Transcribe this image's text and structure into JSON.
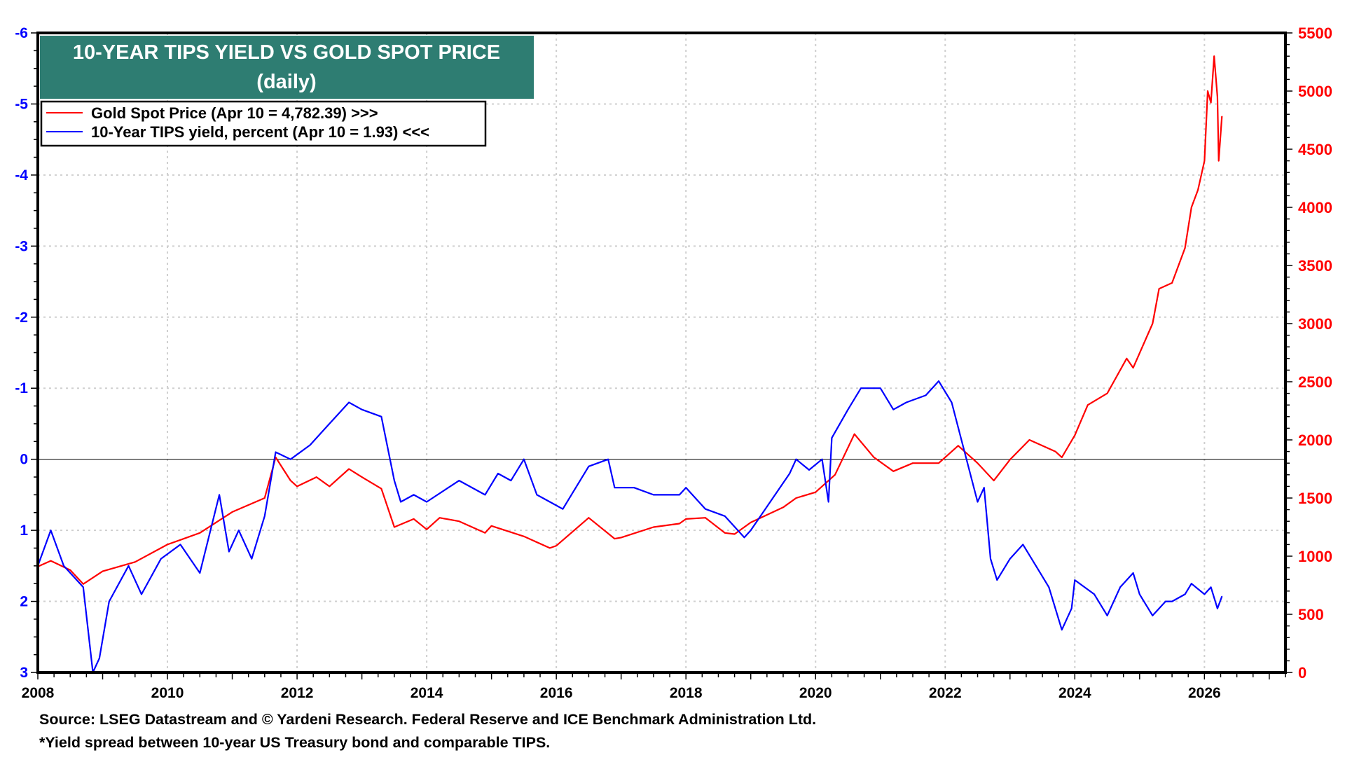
{
  "chart_data": {
    "type": "line",
    "title": "10-YEAR TIPS YIELD VS GOLD SPOT PRICE",
    "subtitle": "(daily)",
    "legend_placement": "top-left",
    "grid": true,
    "colors": {
      "gold": "#ff0000",
      "tips": "#0000ff",
      "title_bg": "#2e7d72"
    },
    "x_axis": {
      "range": [
        2008,
        2027.25
      ],
      "ticks": [
        "2008",
        "2010",
        "2012",
        "2014",
        "2016",
        "2018",
        "2020",
        "2022",
        "2024",
        "2026"
      ]
    },
    "left_axis": {
      "range": [
        3,
        -6
      ],
      "inverted": true,
      "ticks": [
        "-6",
        "-5",
        "-4",
        "-3",
        "-2",
        "-1",
        "0",
        "1",
        "2",
        "3"
      ],
      "color": "#0000ff"
    },
    "right_axis": {
      "range": [
        0,
        5500
      ],
      "ticks": [
        "0",
        "500",
        "1000",
        "1500",
        "2000",
        "2500",
        "3000",
        "3500",
        "4000",
        "4500",
        "5000",
        "5500"
      ],
      "color": "#ff0000"
    },
    "series": [
      {
        "name": "Gold Spot Price (Apr 10 = 4,782.39) >>>",
        "axis": "right",
        "points": [
          [
            2008.0,
            910
          ],
          [
            2008.2,
            960
          ],
          [
            2008.5,
            880
          ],
          [
            2008.7,
            760
          ],
          [
            2009.0,
            870
          ],
          [
            2009.5,
            950
          ],
          [
            2010.0,
            1100
          ],
          [
            2010.5,
            1200
          ],
          [
            2011.0,
            1380
          ],
          [
            2011.5,
            1500
          ],
          [
            2011.67,
            1850
          ],
          [
            2011.9,
            1650
          ],
          [
            2012.0,
            1600
          ],
          [
            2012.3,
            1680
          ],
          [
            2012.5,
            1600
          ],
          [
            2012.8,
            1750
          ],
          [
            2013.0,
            1680
          ],
          [
            2013.3,
            1580
          ],
          [
            2013.5,
            1250
          ],
          [
            2013.8,
            1320
          ],
          [
            2014.0,
            1230
          ],
          [
            2014.2,
            1330
          ],
          [
            2014.5,
            1300
          ],
          [
            2014.9,
            1200
          ],
          [
            2015.0,
            1260
          ],
          [
            2015.5,
            1170
          ],
          [
            2015.9,
            1070
          ],
          [
            2016.0,
            1090
          ],
          [
            2016.5,
            1330
          ],
          [
            2016.9,
            1150
          ],
          [
            2017.0,
            1160
          ],
          [
            2017.5,
            1250
          ],
          [
            2017.9,
            1280
          ],
          [
            2018.0,
            1320
          ],
          [
            2018.3,
            1330
          ],
          [
            2018.6,
            1200
          ],
          [
            2018.75,
            1190
          ],
          [
            2019.0,
            1290
          ],
          [
            2019.5,
            1420
          ],
          [
            2019.7,
            1500
          ],
          [
            2020.0,
            1550
          ],
          [
            2020.3,
            1700
          ],
          [
            2020.6,
            2050
          ],
          [
            2020.9,
            1850
          ],
          [
            2021.2,
            1730
          ],
          [
            2021.5,
            1800
          ],
          [
            2021.9,
            1800
          ],
          [
            2022.2,
            1950
          ],
          [
            2022.5,
            1800
          ],
          [
            2022.75,
            1650
          ],
          [
            2023.0,
            1830
          ],
          [
            2023.3,
            2000
          ],
          [
            2023.7,
            1900
          ],
          [
            2023.8,
            1850
          ],
          [
            2024.0,
            2040
          ],
          [
            2024.2,
            2300
          ],
          [
            2024.5,
            2400
          ],
          [
            2024.8,
            2700
          ],
          [
            2024.9,
            2620
          ],
          [
            2025.2,
            3000
          ],
          [
            2025.3,
            3300
          ],
          [
            2025.5,
            3350
          ],
          [
            2025.7,
            3650
          ],
          [
            2025.8,
            4000
          ],
          [
            2025.9,
            4150
          ],
          [
            2026.0,
            4400
          ],
          [
            2026.05,
            5000
          ],
          [
            2026.1,
            4900
          ],
          [
            2026.15,
            5300
          ],
          [
            2026.2,
            4950
          ],
          [
            2026.22,
            4400
          ],
          [
            2026.27,
            4782.39
          ]
        ]
      },
      {
        "name": "10-Year TIPS yield, percent (Apr 10 = 1.93) <<<",
        "axis": "left",
        "points": [
          [
            2008.0,
            1.5
          ],
          [
            2008.2,
            1.0
          ],
          [
            2008.4,
            1.5
          ],
          [
            2008.7,
            1.8
          ],
          [
            2008.85,
            3.0
          ],
          [
            2008.95,
            2.8
          ],
          [
            2009.1,
            2.0
          ],
          [
            2009.4,
            1.5
          ],
          [
            2009.6,
            1.9
          ],
          [
            2009.9,
            1.4
          ],
          [
            2010.2,
            1.2
          ],
          [
            2010.5,
            1.6
          ],
          [
            2010.8,
            0.5
          ],
          [
            2010.95,
            1.3
          ],
          [
            2011.1,
            1.0
          ],
          [
            2011.3,
            1.4
          ],
          [
            2011.5,
            0.8
          ],
          [
            2011.67,
            -0.1
          ],
          [
            2011.9,
            0.0
          ],
          [
            2012.2,
            -0.2
          ],
          [
            2012.5,
            -0.5
          ],
          [
            2012.8,
            -0.8
          ],
          [
            2013.0,
            -0.7
          ],
          [
            2013.3,
            -0.6
          ],
          [
            2013.5,
            0.3
          ],
          [
            2013.6,
            0.6
          ],
          [
            2013.8,
            0.5
          ],
          [
            2014.0,
            0.6
          ],
          [
            2014.5,
            0.3
          ],
          [
            2014.9,
            0.5
          ],
          [
            2015.1,
            0.2
          ],
          [
            2015.3,
            0.3
          ],
          [
            2015.5,
            0.0
          ],
          [
            2015.7,
            0.5
          ],
          [
            2015.9,
            0.6
          ],
          [
            2016.1,
            0.7
          ],
          [
            2016.5,
            0.1
          ],
          [
            2016.8,
            0.0
          ],
          [
            2016.9,
            0.4
          ],
          [
            2017.2,
            0.4
          ],
          [
            2017.5,
            0.5
          ],
          [
            2017.9,
            0.5
          ],
          [
            2018.0,
            0.4
          ],
          [
            2018.3,
            0.7
          ],
          [
            2018.6,
            0.8
          ],
          [
            2018.9,
            1.1
          ],
          [
            2019.0,
            1.0
          ],
          [
            2019.3,
            0.6
          ],
          [
            2019.6,
            0.2
          ],
          [
            2019.7,
            0.0
          ],
          [
            2019.9,
            0.15
          ],
          [
            2020.1,
            0.0
          ],
          [
            2020.2,
            0.6
          ],
          [
            2020.25,
            -0.3
          ],
          [
            2020.5,
            -0.7
          ],
          [
            2020.7,
            -1.0
          ],
          [
            2021.0,
            -1.0
          ],
          [
            2021.2,
            -0.7
          ],
          [
            2021.4,
            -0.8
          ],
          [
            2021.7,
            -0.9
          ],
          [
            2021.9,
            -1.1
          ],
          [
            2022.1,
            -0.8
          ],
          [
            2022.3,
            -0.1
          ],
          [
            2022.5,
            0.6
          ],
          [
            2022.6,
            0.4
          ],
          [
            2022.7,
            1.4
          ],
          [
            2022.8,
            1.7
          ],
          [
            2023.0,
            1.4
          ],
          [
            2023.2,
            1.2
          ],
          [
            2023.4,
            1.5
          ],
          [
            2023.6,
            1.8
          ],
          [
            2023.8,
            2.4
          ],
          [
            2023.95,
            2.1
          ],
          [
            2024.0,
            1.7
          ],
          [
            2024.3,
            1.9
          ],
          [
            2024.5,
            2.2
          ],
          [
            2024.7,
            1.8
          ],
          [
            2024.9,
            1.6
          ],
          [
            2025.0,
            1.9
          ],
          [
            2025.2,
            2.2
          ],
          [
            2025.4,
            2.0
          ],
          [
            2025.5,
            2.0
          ],
          [
            2025.7,
            1.9
          ],
          [
            2025.8,
            1.75
          ],
          [
            2026.0,
            1.9
          ],
          [
            2026.1,
            1.8
          ],
          [
            2026.2,
            2.1
          ],
          [
            2026.27,
            1.93
          ]
        ]
      }
    ],
    "footnotes": [
      "Source: LSEG Datastream and © Yardeni Research. Federal Reserve and ICE Benchmark Administration Ltd.",
      "*Yield spread between 10-year US Treasury bond and comparable TIPS."
    ]
  }
}
